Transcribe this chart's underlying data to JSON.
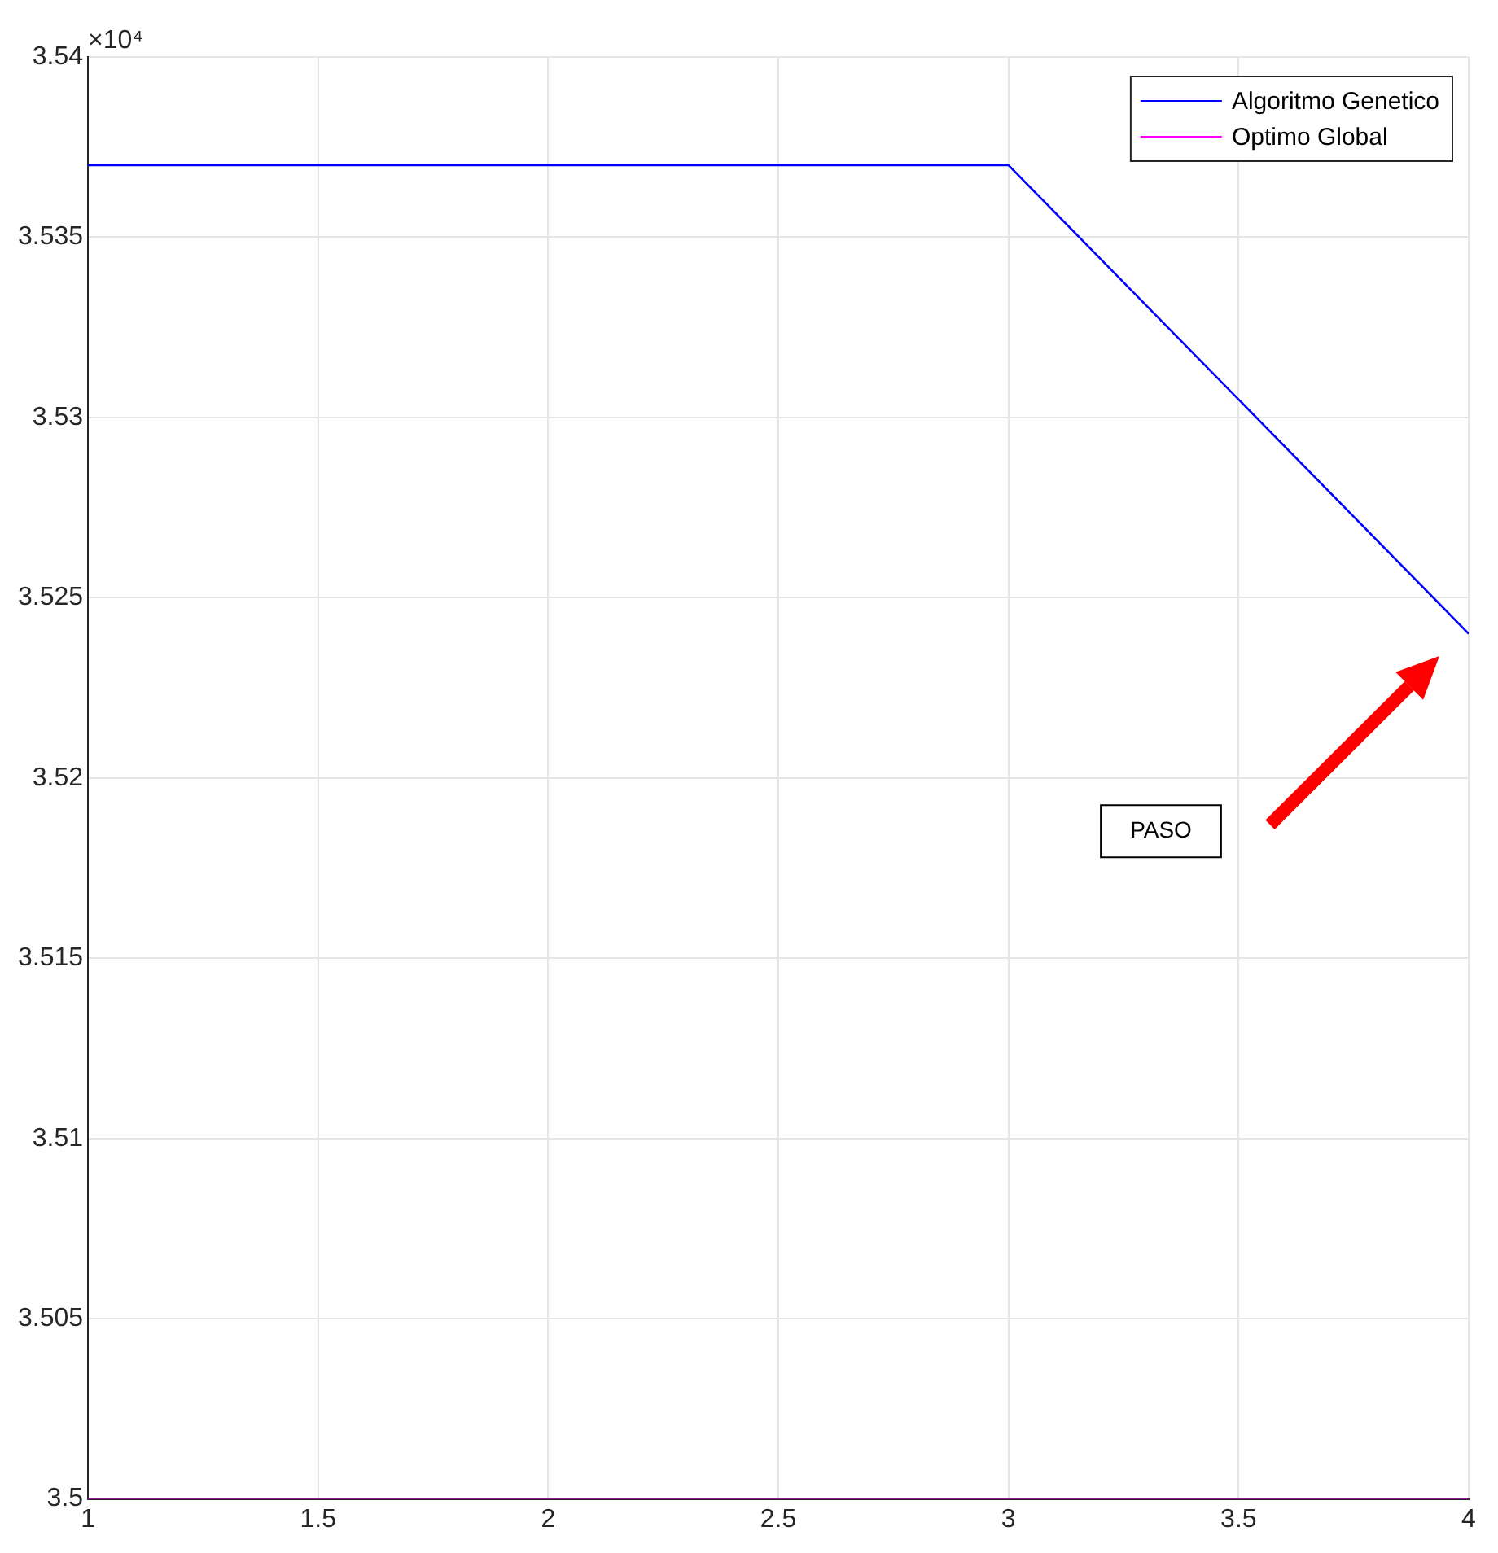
{
  "chart_data": {
    "type": "line",
    "x": [
      1,
      2,
      3,
      4
    ],
    "series": [
      {
        "name": "Algoritmo Genetico",
        "color": "#0000ff",
        "values": [
          3.537,
          3.537,
          3.537,
          3.524
        ]
      },
      {
        "name": "Optimo Global",
        "color": "#ff00ff",
        "values": [
          3.5,
          3.5,
          3.5,
          3.5
        ]
      }
    ],
    "xlim": [
      1,
      4
    ],
    "xticks": [
      1,
      1.5,
      2,
      2.5,
      3,
      3.5,
      4
    ],
    "ylim": [
      3.5,
      3.54
    ],
    "yticks": [
      3.5,
      3.505,
      3.51,
      3.515,
      3.52,
      3.525,
      3.53,
      3.535,
      3.54
    ],
    "annotations": [
      "×10⁴",
      "PASO"
    ],
    "grid": true,
    "legend": "top right",
    "marker": "none",
    "line_style": "solid"
  }
}
